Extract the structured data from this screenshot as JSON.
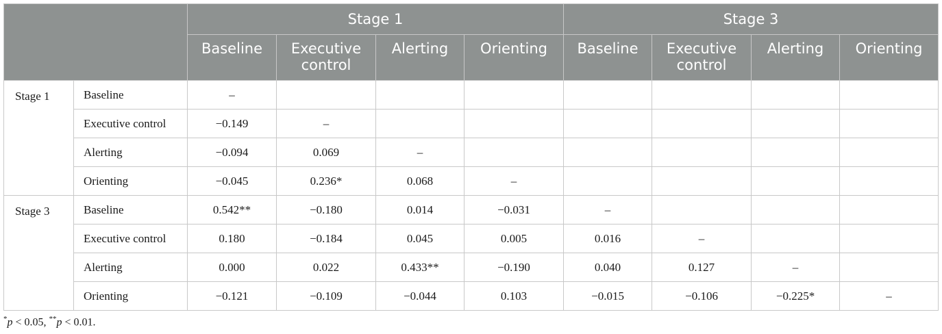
{
  "header": {
    "stage1": "Stage 1",
    "stage3": "Stage 3",
    "columns": [
      "Baseline",
      "Executive control",
      "Alerting",
      "Orienting",
      "Baseline",
      "Executive control",
      "Alerting",
      "Orienting"
    ]
  },
  "rows": [
    {
      "stage": "Stage 1",
      "label": "Baseline",
      "cells": [
        "–",
        "",
        "",
        "",
        "",
        "",
        "",
        ""
      ]
    },
    {
      "stage": "",
      "label": "Executive control",
      "cells": [
        "−0.149",
        "–",
        "",
        "",
        "",
        "",
        "",
        ""
      ]
    },
    {
      "stage": "",
      "label": "Alerting",
      "cells": [
        "−0.094",
        "0.069",
        "–",
        "",
        "",
        "",
        "",
        ""
      ]
    },
    {
      "stage": "",
      "label": "Orienting",
      "cells": [
        "−0.045",
        "0.236*",
        "0.068",
        "–",
        "",
        "",
        "",
        ""
      ]
    },
    {
      "stage": "Stage 3",
      "label": "Baseline",
      "cells": [
        "0.542**",
        "−0.180",
        "0.014",
        "−0.031",
        "–",
        "",
        "",
        ""
      ]
    },
    {
      "stage": "",
      "label": "Executive control",
      "cells": [
        "0.180",
        "−0.184",
        "0.045",
        "0.005",
        "0.016",
        "–",
        "",
        ""
      ]
    },
    {
      "stage": "",
      "label": "Alerting",
      "cells": [
        "0.000",
        "0.022",
        "0.433**",
        "−0.190",
        "0.040",
        "0.127",
        "–",
        ""
      ]
    },
    {
      "stage": "",
      "label": "Orienting",
      "cells": [
        "−0.121",
        "−0.109",
        "−0.044",
        "0.103",
        "−0.015",
        "−0.106",
        "−0.225*",
        "–"
      ]
    }
  ],
  "footnote": {
    "star1": "*",
    "p1": "p",
    "t1": " < 0.05, ",
    "star2": "**",
    "p2": "p",
    "t2": " < 0.01."
  }
}
